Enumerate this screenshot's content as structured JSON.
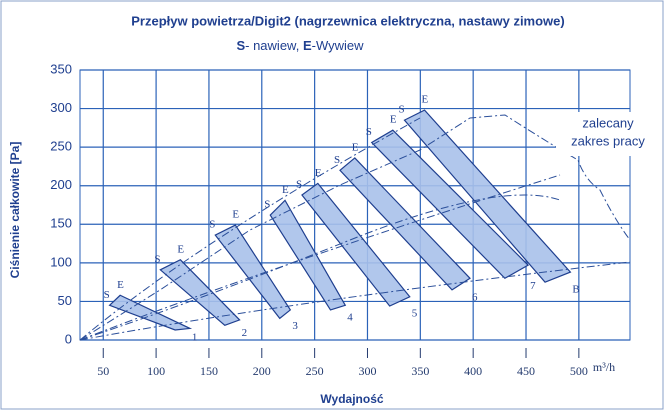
{
  "chart_data": {
    "type": "fan-bands",
    "title": "Przepływ powietrza/Digit2 (nagrzewnica elektryczna, nastawy zimowe)",
    "subtitle": {
      "s": "S",
      "s_text": "- nawiew, ",
      "e": "E",
      "e_text": "-Wywiew"
    },
    "y_label": "Ciśnienie całkowite [Pa]",
    "x_label": "Wydajność",
    "x_unit": "m³/h",
    "annotation": [
      "zalecany",
      "zakres pracy"
    ],
    "xlim": [
      28,
      520
    ],
    "ylim": [
      0,
      350
    ],
    "xticks": [
      50,
      100,
      150,
      200,
      250,
      300,
      350,
      400,
      450,
      500
    ],
    "yticks": [
      0,
      50,
      100,
      150,
      200,
      250,
      300,
      350
    ],
    "grid": true,
    "color": "#a9c1ea",
    "bands": [
      {
        "name": "1",
        "s": "S",
        "e": "E",
        "upper": {
          "x": [
            66,
            132
          ],
          "y": [
            58,
            15
          ]
        },
        "lower": {
          "x": [
            56,
            118
          ],
          "y": [
            45,
            13
          ]
        }
      },
      {
        "name": "2",
        "s": "S",
        "e": "E",
        "upper": {
          "x": [
            123,
            179
          ],
          "y": [
            104,
            26
          ]
        },
        "lower": {
          "x": [
            104,
            165
          ],
          "y": [
            91,
            19
          ]
        }
      },
      {
        "name": "3",
        "s": "S",
        "e": "E",
        "upper": {
          "x": [
            175,
            227
          ],
          "y": [
            149,
            39
          ]
        },
        "lower": {
          "x": [
            156,
            217
          ],
          "y": [
            136,
            28
          ]
        }
      },
      {
        "name": "4",
        "s": "S",
        "e": "E",
        "upper": {
          "x": [
            222,
            279
          ],
          "y": [
            181,
            45
          ]
        },
        "lower": {
          "x": [
            208,
            265
          ],
          "y": [
            162,
            39
          ]
        }
      },
      {
        "name": "5",
        "s": "S",
        "e": "E",
        "upper": {
          "x": [
            253,
            340
          ],
          "y": [
            203,
            56
          ]
        },
        "lower": {
          "x": [
            238,
            321
          ],
          "y": [
            188,
            44
          ]
        }
      },
      {
        "name": "6",
        "s": "S",
        "e": "E",
        "upper": {
          "x": [
            288,
            397
          ],
          "y": [
            236,
            80
          ]
        },
        "lower": {
          "x": [
            274,
            380
          ],
          "y": [
            220,
            65
          ]
        }
      },
      {
        "name": "7",
        "s": "S",
        "e": "E",
        "upper": {
          "x": [
            324,
            452
          ],
          "y": [
            272,
            97
          ]
        },
        "lower": {
          "x": [
            304,
            430
          ],
          "y": [
            256,
            80
          ]
        }
      },
      {
        "name": "B",
        "s": "S",
        "e": "E",
        "upper": {
          "x": [
            354,
            492
          ],
          "y": [
            298,
            88
          ]
        },
        "lower": {
          "x": [
            335,
            468
          ],
          "y": [
            285,
            75
          ]
        }
      }
    ]
  }
}
